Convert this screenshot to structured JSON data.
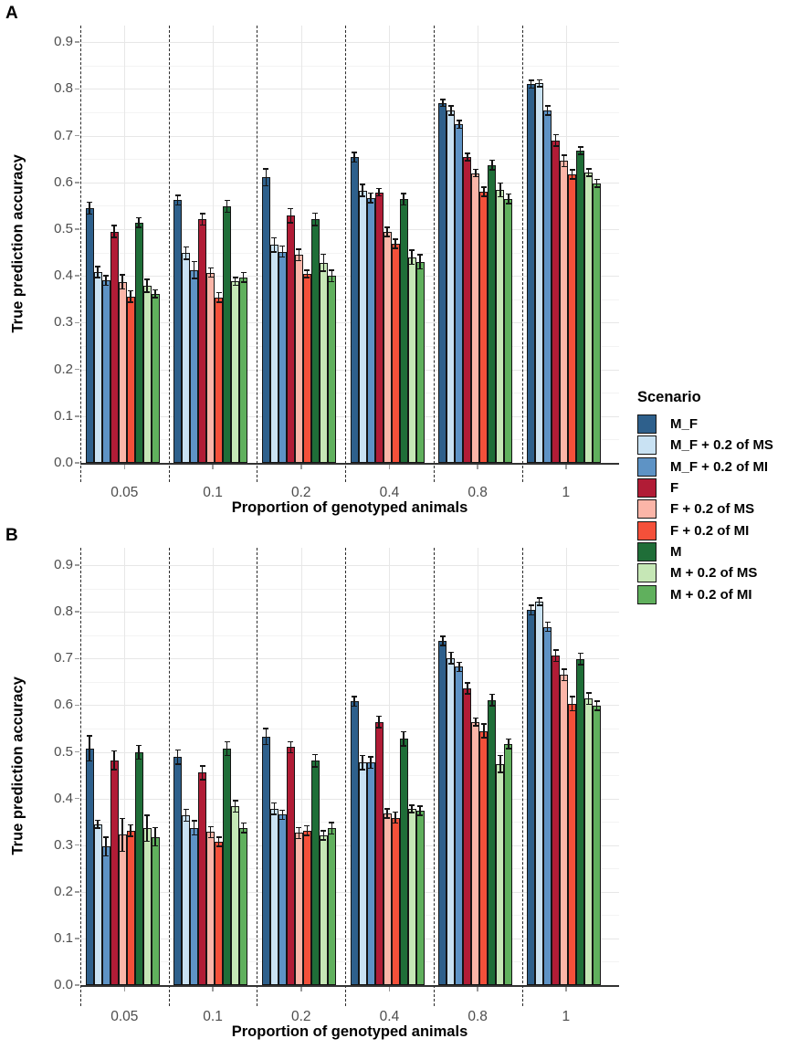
{
  "figure": {
    "panel_a_label": "A",
    "panel_b_label": "B",
    "legend": {
      "title": "Scenario",
      "position": "right-center",
      "entries": [
        {
          "label": "M_F",
          "color": "#2e608c"
        },
        {
          "label": "M_F + 0.2 of MS",
          "color": "#c9e2f3"
        },
        {
          "label": "M_F + 0.2 of MI",
          "color": "#5e93c5"
        },
        {
          "label": "F",
          "color": "#b11c36"
        },
        {
          "label": "F + 0.2 of MS",
          "color": "#fbb5a8"
        },
        {
          "label": "F + 0.2 of MI",
          "color": "#f4503a"
        },
        {
          "label": "M",
          "color": "#1f6e38"
        },
        {
          "label": "M + 0.2 of MS",
          "color": "#c6e7b6"
        },
        {
          "label": "M + 0.2 of MI",
          "color": "#60b05d"
        }
      ]
    }
  },
  "chart_data": [
    {
      "type": "bar",
      "panel": "A",
      "xlabel": "Proportion of genotyped animals",
      "ylabel": "True prediction accuracy",
      "categories": [
        "0.05",
        "0.1",
        "0.2",
        "0.4",
        "0.8",
        "1"
      ],
      "yticks": [
        "0.0",
        "0.1",
        "0.2",
        "0.3",
        "0.4",
        "0.5",
        "0.6",
        "0.7",
        "0.8",
        "0.9"
      ],
      "ylim": [
        0,
        0.95
      ],
      "grid": "horizontal-major-minor, vertical-major",
      "group_separator": "dashed",
      "error_bars": true,
      "series": [
        {
          "name": "M_F",
          "color": "#2e608c",
          "values": [
            0.545,
            0.562,
            0.611,
            0.654,
            0.77,
            0.81
          ],
          "errors": [
            0.013,
            0.01,
            0.018,
            0.01,
            0.007,
            0.008
          ]
        },
        {
          "name": "M_F + 0.2 of MS",
          "color": "#c9e2f3",
          "values": [
            0.408,
            0.449,
            0.466,
            0.583,
            0.754,
            0.812
          ],
          "errors": [
            0.012,
            0.013,
            0.015,
            0.013,
            0.01,
            0.007
          ]
        },
        {
          "name": "M_F + 0.2 of MI",
          "color": "#5e93c5",
          "values": [
            0.39,
            0.413,
            0.452,
            0.567,
            0.724,
            0.754
          ],
          "errors": [
            0.01,
            0.018,
            0.012,
            0.01,
            0.008,
            0.01
          ]
        },
        {
          "name": "F",
          "color": "#b11c36",
          "values": [
            0.495,
            0.521,
            0.529,
            0.579,
            0.654,
            0.69
          ],
          "errors": [
            0.013,
            0.012,
            0.015,
            0.008,
            0.008,
            0.012
          ]
        },
        {
          "name": "F + 0.2 of MS",
          "color": "#fbb5a8",
          "values": [
            0.387,
            0.407,
            0.445,
            0.494,
            0.62,
            0.646
          ],
          "errors": [
            0.015,
            0.01,
            0.012,
            0.01,
            0.008,
            0.012
          ]
        },
        {
          "name": "F + 0.2 of MI",
          "color": "#f4503a",
          "values": [
            0.356,
            0.354,
            0.404,
            0.469,
            0.58,
            0.617
          ],
          "errors": [
            0.012,
            0.01,
            0.008,
            0.01,
            0.01,
            0.01
          ]
        },
        {
          "name": "M",
          "color": "#1f6e38",
          "values": [
            0.514,
            0.549,
            0.521,
            0.564,
            0.637,
            0.668
          ],
          "errors": [
            0.01,
            0.013,
            0.013,
            0.012,
            0.01,
            0.008
          ]
        },
        {
          "name": "M + 0.2 of MS",
          "color": "#c6e7b6",
          "values": [
            0.379,
            0.388,
            0.428,
            0.44,
            0.584,
            0.621
          ],
          "errors": [
            0.014,
            0.008,
            0.018,
            0.015,
            0.015,
            0.008
          ]
        },
        {
          "name": "M + 0.2 of MI",
          "color": "#60b05d",
          "values": [
            0.362,
            0.397,
            0.4,
            0.43,
            0.565,
            0.598
          ],
          "errors": [
            0.008,
            0.01,
            0.012,
            0.015,
            0.01,
            0.008
          ]
        }
      ]
    },
    {
      "type": "bar",
      "panel": "B",
      "xlabel": "Proportion of genotyped animals",
      "ylabel": "True prediction accuracy",
      "categories": [
        "0.05",
        "0.1",
        "0.2",
        "0.4",
        "0.8",
        "1"
      ],
      "yticks": [
        "0.0",
        "0.1",
        "0.2",
        "0.3",
        "0.4",
        "0.5",
        "0.6",
        "0.7",
        "0.8",
        "0.9"
      ],
      "ylim": [
        0,
        0.95
      ],
      "grid": "horizontal-major-minor, vertical-major",
      "group_separator": "dashed",
      "error_bars": true,
      "series": [
        {
          "name": "M_F",
          "color": "#2e608c",
          "values": [
            0.507,
            0.489,
            0.533,
            0.608,
            0.738,
            0.804
          ],
          "errors": [
            0.027,
            0.015,
            0.017,
            0.01,
            0.01,
            0.01
          ]
        },
        {
          "name": "M_F + 0.2 of MS",
          "color": "#c9e2f3",
          "values": [
            0.345,
            0.364,
            0.378,
            0.477,
            0.701,
            0.822
          ],
          "errors": [
            0.008,
            0.013,
            0.012,
            0.015,
            0.012,
            0.008
          ]
        },
        {
          "name": "M_F + 0.2 of MI",
          "color": "#5e93c5",
          "values": [
            0.297,
            0.337,
            0.365,
            0.477,
            0.682,
            0.768
          ],
          "errors": [
            0.02,
            0.015,
            0.01,
            0.012,
            0.01,
            0.01
          ]
        },
        {
          "name": "F",
          "color": "#b11c36",
          "values": [
            0.482,
            0.455,
            0.51,
            0.564,
            0.636,
            0.706
          ],
          "errors": [
            0.02,
            0.015,
            0.012,
            0.012,
            0.012,
            0.012
          ]
        },
        {
          "name": "F + 0.2 of MS",
          "color": "#fbb5a8",
          "values": [
            0.322,
            0.328,
            0.326,
            0.368,
            0.564,
            0.665
          ],
          "errors": [
            0.035,
            0.012,
            0.012,
            0.01,
            0.008,
            0.012
          ]
        },
        {
          "name": "F + 0.2 of MI",
          "color": "#f4503a",
          "values": [
            0.331,
            0.307,
            0.331,
            0.359,
            0.545,
            0.603
          ],
          "errors": [
            0.012,
            0.01,
            0.01,
            0.012,
            0.015,
            0.015
          ]
        },
        {
          "name": "M",
          "color": "#1f6e38",
          "values": [
            0.499,
            0.507,
            0.481,
            0.528,
            0.611,
            0.699
          ],
          "errors": [
            0.015,
            0.015,
            0.013,
            0.015,
            0.012,
            0.012
          ]
        },
        {
          "name": "M + 0.2 of MS",
          "color": "#c6e7b6",
          "values": [
            0.336,
            0.383,
            0.321,
            0.378,
            0.474,
            0.614
          ],
          "errors": [
            0.028,
            0.012,
            0.01,
            0.008,
            0.018,
            0.012
          ]
        },
        {
          "name": "M + 0.2 of MI",
          "color": "#60b05d",
          "values": [
            0.318,
            0.337,
            0.336,
            0.374,
            0.517,
            0.599
          ],
          "errors": [
            0.02,
            0.01,
            0.012,
            0.01,
            0.01,
            0.01
          ]
        }
      ]
    }
  ]
}
